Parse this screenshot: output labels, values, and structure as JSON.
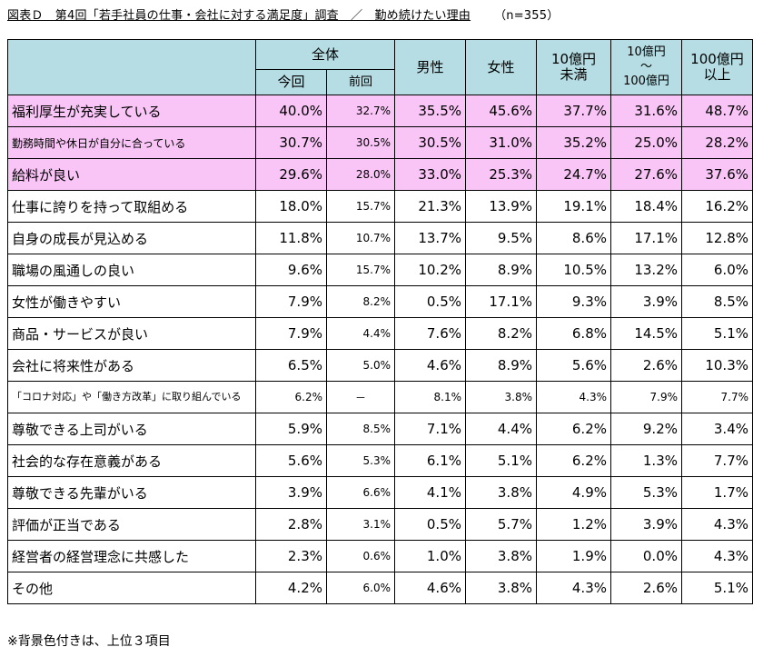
{
  "title": {
    "main": "図表Ｄ　第4回「若手社員の仕事・会社に対する満足度」調査　／　勤め続けたい理由",
    "n": "（n=355）"
  },
  "chart_data": {
    "type": "table",
    "header": {
      "overall": "全体",
      "current": "今回",
      "previous": "前回",
      "male": "男性",
      "female": "女性",
      "small_line1": "10億円",
      "small_line2": "未満",
      "mid_line1": "10億円",
      "mid_line2": "～",
      "mid_line3": "100億円",
      "large_line1": "100億円",
      "large_line2": "以上"
    },
    "rows": [
      {
        "label": "福利厚生が充実している",
        "highlight": true,
        "values": [
          "40.0%",
          "32.7%",
          "35.5%",
          "45.6%",
          "37.7%",
          "31.6%",
          "48.7%"
        ]
      },
      {
        "label": "勤務時間や休日が自分に合っている",
        "highlight": true,
        "values": [
          "30.7%",
          "30.5%",
          "30.5%",
          "31.0%",
          "35.2%",
          "25.0%",
          "28.2%"
        ]
      },
      {
        "label": "給料が良い",
        "highlight": true,
        "values": [
          "29.6%",
          "28.0%",
          "33.0%",
          "25.3%",
          "24.7%",
          "27.6%",
          "37.6%"
        ]
      },
      {
        "label": "仕事に誇りを持って取組める",
        "highlight": false,
        "values": [
          "18.0%",
          "15.7%",
          "21.3%",
          "13.9%",
          "19.1%",
          "18.4%",
          "16.2%"
        ]
      },
      {
        "label": "自身の成長が見込める",
        "highlight": false,
        "values": [
          "11.8%",
          "10.7%",
          "13.7%",
          "9.5%",
          "8.6%",
          "17.1%",
          "12.8%"
        ]
      },
      {
        "label": "職場の風通しの良い",
        "highlight": false,
        "values": [
          "9.6%",
          "15.7%",
          "10.2%",
          "8.9%",
          "10.5%",
          "13.2%",
          "6.0%"
        ]
      },
      {
        "label": "女性が働きやすい",
        "highlight": false,
        "values": [
          "7.9%",
          "8.2%",
          "0.5%",
          "17.1%",
          "9.3%",
          "3.9%",
          "8.5%"
        ]
      },
      {
        "label": "商品・サービスが良い",
        "highlight": false,
        "values": [
          "7.9%",
          "4.4%",
          "7.6%",
          "8.2%",
          "6.8%",
          "14.5%",
          "5.1%"
        ]
      },
      {
        "label": "会社に将来性がある",
        "highlight": false,
        "values": [
          "6.5%",
          "5.0%",
          "4.6%",
          "8.9%",
          "5.6%",
          "2.6%",
          "10.3%"
        ]
      },
      {
        "label": "「コロナ対応」や「働き方改革」に取り組んでいる",
        "highlight": false,
        "values": [
          "6.2%",
          "－",
          "8.1%",
          "3.8%",
          "4.3%",
          "7.9%",
          "7.7%"
        ]
      },
      {
        "label": "尊敬できる上司がいる",
        "highlight": false,
        "values": [
          "5.9%",
          "8.5%",
          "7.1%",
          "4.4%",
          "6.2%",
          "9.2%",
          "3.4%"
        ]
      },
      {
        "label": "社会的な存在意義がある",
        "highlight": false,
        "values": [
          "5.6%",
          "5.3%",
          "6.1%",
          "5.1%",
          "6.2%",
          "1.3%",
          "7.7%"
        ]
      },
      {
        "label": "尊敬できる先輩がいる",
        "highlight": false,
        "values": [
          "3.9%",
          "6.6%",
          "4.1%",
          "3.8%",
          "4.9%",
          "5.3%",
          "1.7%"
        ]
      },
      {
        "label": "評価が正当である",
        "highlight": false,
        "values": [
          "2.8%",
          "3.1%",
          "0.5%",
          "5.7%",
          "1.2%",
          "3.9%",
          "4.3%"
        ]
      },
      {
        "label": "経営者の経営理念に共感した",
        "highlight": false,
        "values": [
          "2.3%",
          "0.6%",
          "1.0%",
          "3.8%",
          "1.9%",
          "0.0%",
          "4.3%"
        ]
      },
      {
        "label": "その他",
        "highlight": false,
        "values": [
          "4.2%",
          "6.0%",
          "4.6%",
          "3.8%",
          "4.3%",
          "2.6%",
          "5.1%"
        ]
      }
    ],
    "colors": {
      "header_bg": "#b5dde3",
      "highlight_bg": "#f9c4f6"
    }
  },
  "note": "※背景色付きは、上位３項目"
}
